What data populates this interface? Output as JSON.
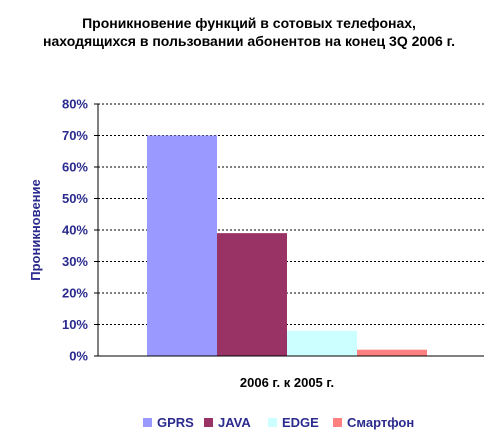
{
  "chart_data": {
    "type": "bar",
    "title_lines": [
      "Проникновение функций в сотовых телефонах,",
      "находящихся в пользовании абонентов на конец 3Q 2006 г."
    ],
    "ylabel": "Проникновение",
    "xlabel": "",
    "categories": [
      "2006 г. к 2005 г."
    ],
    "ylim": [
      0,
      80
    ],
    "yticks": [
      "0%",
      "10%",
      "20%",
      "30%",
      "40%",
      "50%",
      "60%",
      "70%",
      "80%"
    ],
    "grid": true,
    "legend_position": "bottom",
    "series": [
      {
        "name": "GPRS",
        "values": [
          70
        ],
        "color": "#9999ff"
      },
      {
        "name": "JAVA",
        "values": [
          39
        ],
        "color": "#993366"
      },
      {
        "name": "EDGE",
        "values": [
          8
        ],
        "color": "#ccffff"
      },
      {
        "name": "Смартфон",
        "values": [
          2
        ],
        "color": "#ff8080"
      }
    ]
  }
}
